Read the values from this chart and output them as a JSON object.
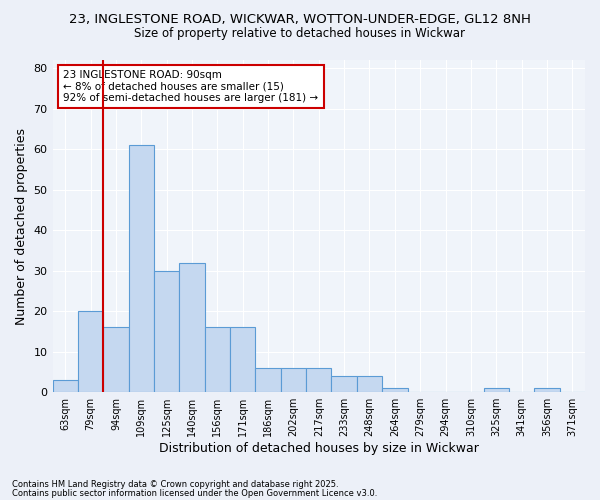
{
  "title_line1": "23, INGLESTONE ROAD, WICKWAR, WOTTON-UNDER-EDGE, GL12 8NH",
  "title_line2": "Size of property relative to detached houses in Wickwar",
  "xlabel": "Distribution of detached houses by size in Wickwar",
  "ylabel": "Number of detached properties",
  "categories": [
    "63sqm",
    "79sqm",
    "94sqm",
    "109sqm",
    "125sqm",
    "140sqm",
    "156sqm",
    "171sqm",
    "186sqm",
    "202sqm",
    "217sqm",
    "233sqm",
    "248sqm",
    "264sqm",
    "279sqm",
    "294sqm",
    "310sqm",
    "325sqm",
    "341sqm",
    "356sqm",
    "371sqm"
  ],
  "values": [
    3,
    20,
    16,
    61,
    30,
    32,
    16,
    16,
    6,
    6,
    6,
    4,
    4,
    1,
    0,
    0,
    0,
    1,
    0,
    1,
    0
  ],
  "bar_color": "#c5d8f0",
  "bar_edge_color": "#5b9bd5",
  "vline_color": "#cc0000",
  "annotation_title": "23 INGLESTONE ROAD: 90sqm",
  "annotation_line2": "← 8% of detached houses are smaller (15)",
  "annotation_line3": "92% of semi-detached houses are larger (181) →",
  "annotation_box_color": "#cc0000",
  "annotation_bg": "#ffffff",
  "ylim": [
    0,
    82
  ],
  "yticks": [
    0,
    10,
    20,
    30,
    40,
    50,
    60,
    70,
    80
  ],
  "footnote1": "Contains HM Land Registry data © Crown copyright and database right 2025.",
  "footnote2": "Contains public sector information licensed under the Open Government Licence v3.0.",
  "bg_color": "#ecf0f8",
  "plot_bg_color": "#f0f4fa",
  "grid_color": "#ffffff",
  "title_fontsize": 9.5,
  "subtitle_fontsize": 8.5,
  "axis_label_fontsize": 8,
  "tick_fontsize": 7,
  "footnote_fontsize": 6
}
